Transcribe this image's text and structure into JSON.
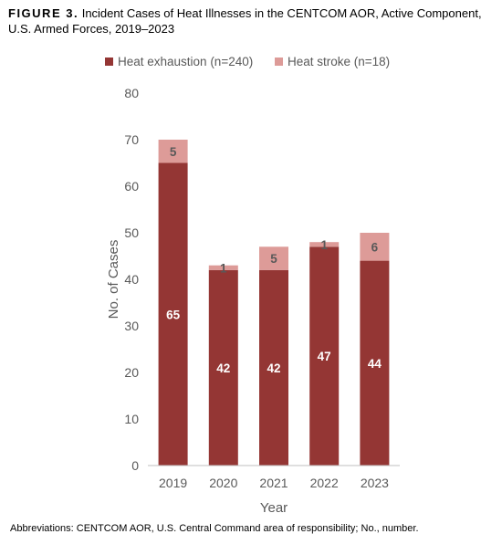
{
  "caption": {
    "label": "FIGURE 3.",
    "text": "Incident Cases of Heat Illnesses in the CENTCOM AOR, Active Component, U.S. Armed Forces, 2019–2023"
  },
  "chart_data": {
    "type": "bar",
    "stacked": true,
    "categories": [
      "2019",
      "2020",
      "2021",
      "2022",
      "2023"
    ],
    "series": [
      {
        "name": "Heat exhaustion (n=240)",
        "values": [
          65,
          42,
          42,
          47,
          44
        ],
        "color": "#943634"
      },
      {
        "name": "Heat stroke (n=18)",
        "values": [
          5,
          1,
          5,
          1,
          6
        ],
        "color": "#dd9b98"
      }
    ],
    "xlabel": "Year",
    "ylabel": "No. of Cases",
    "ylim": [
      0,
      80
    ],
    "yticks": [
      0,
      10,
      20,
      30,
      40,
      50,
      60,
      70,
      80
    ],
    "grid": false,
    "legend": "top"
  },
  "footnote": "Abbreviations: CENTCOM AOR, U.S. Central Command area of responsibility; No., number."
}
